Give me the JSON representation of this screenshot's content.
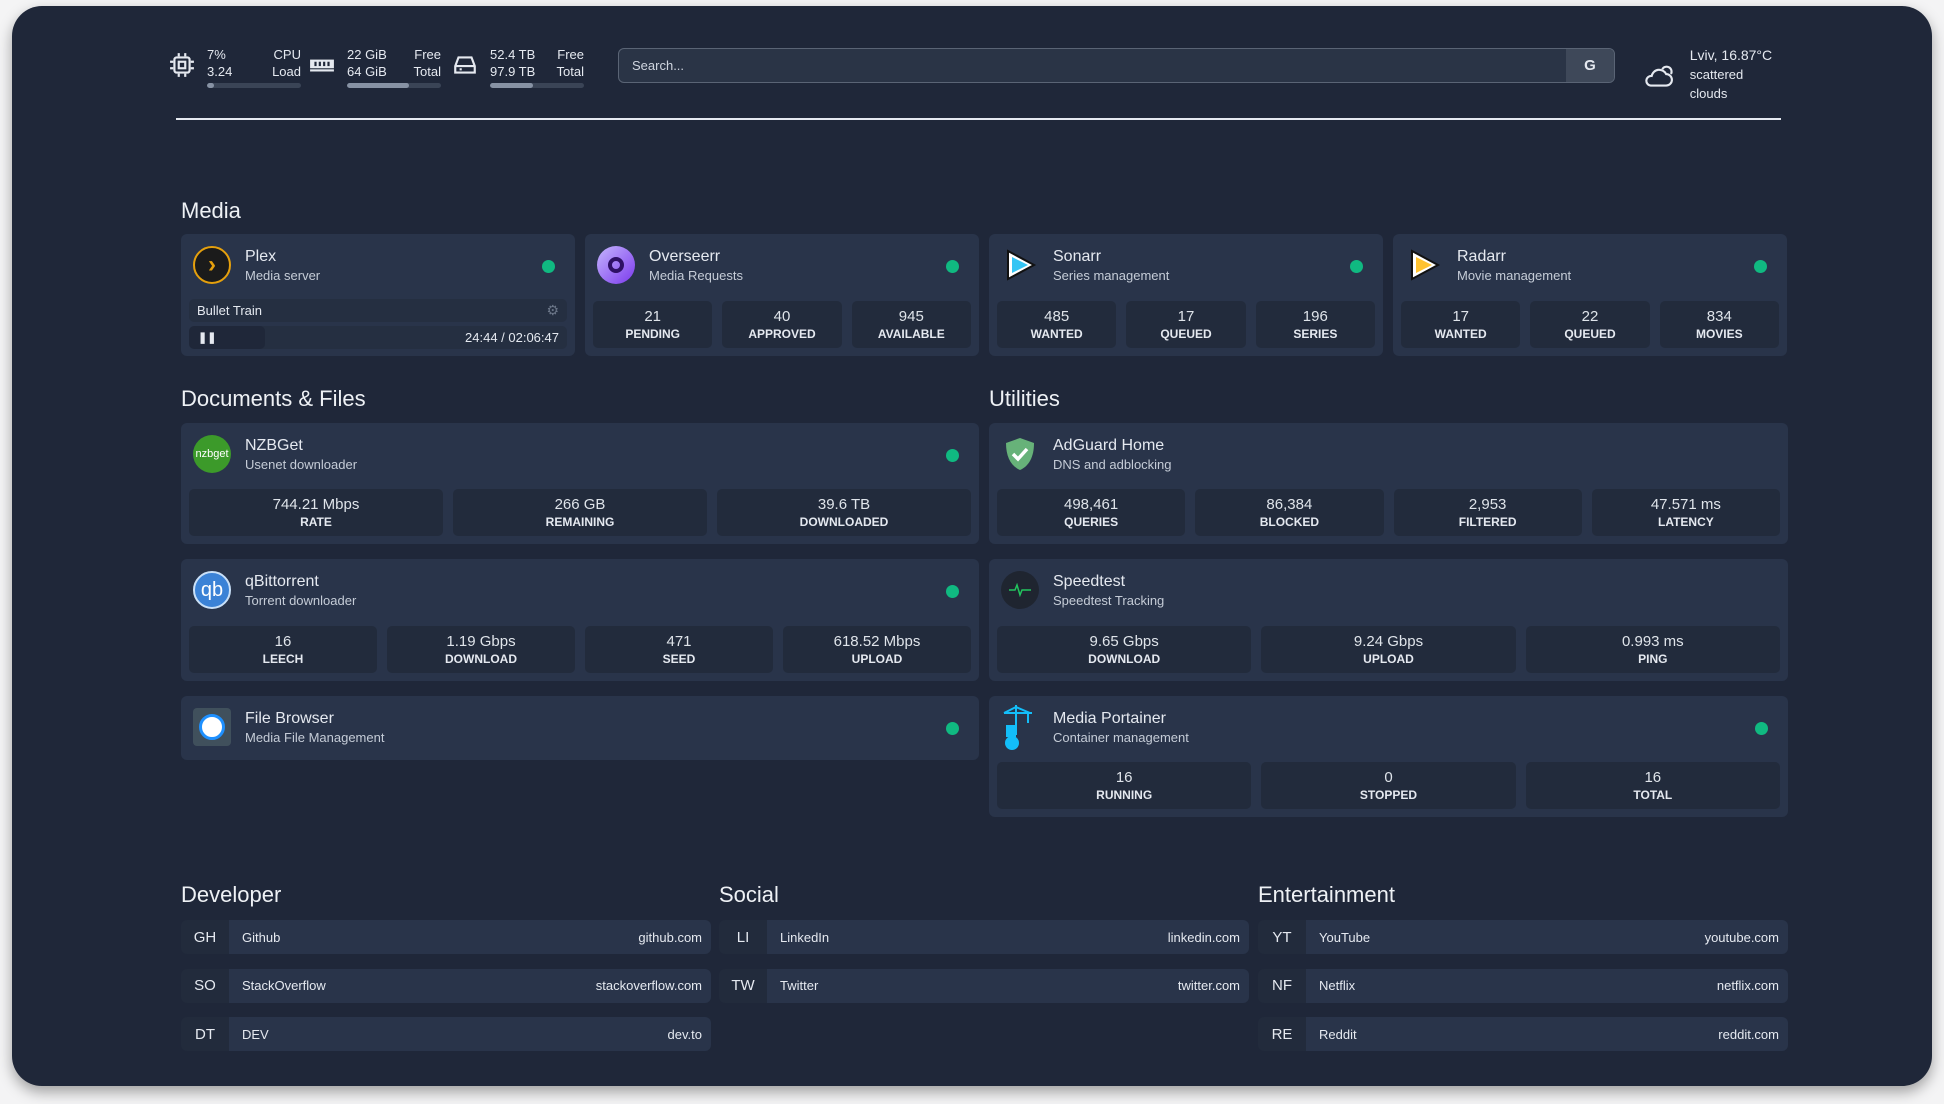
{
  "header": {
    "cpu": {
      "icon": "cpu-icon",
      "value1": "7%",
      "value2": "3.24",
      "label1": "CPU",
      "label2": "Load",
      "fill_percent": 7
    },
    "memory": {
      "icon": "memory-icon",
      "value1": "22 GiB",
      "value2": "64 GiB",
      "label1": "Free",
      "label2": "Total",
      "fill_percent": 66
    },
    "disk": {
      "icon": "disk-icon",
      "value1": "52.4 TB",
      "value2": "97.9 TB",
      "label1": "Free",
      "label2": "Total",
      "fill_percent": 46
    },
    "search": {
      "placeholder": "Search...",
      "engine_label": "G"
    },
    "weather": {
      "icon": "cloud-icon",
      "location_temp": "Lviv, 16.87°C",
      "condition": "scattered clouds"
    }
  },
  "sections": {
    "media": "Media",
    "documents": "Documents & Files",
    "utilities": "Utilities",
    "developer": "Developer",
    "social": "Social",
    "entertainment": "Entertainment"
  },
  "media": [
    {
      "name": "Plex",
      "desc": "Media server",
      "icon": "plex-icon",
      "status": "online",
      "now_playing": {
        "title": "Bullet Train",
        "time": "24:44 / 02:06:47",
        "progress_percent": 20
      }
    },
    {
      "name": "Overseerr",
      "desc": "Media Requests",
      "icon": "overseerr-icon",
      "status": "online",
      "stats": [
        {
          "v": "21",
          "l": "PENDING"
        },
        {
          "v": "40",
          "l": "APPROVED"
        },
        {
          "v": "945",
          "l": "AVAILABLE"
        }
      ]
    },
    {
      "name": "Sonarr",
      "desc": "Series management",
      "icon": "sonarr-icon",
      "status": "online",
      "stats": [
        {
          "v": "485",
          "l": "WANTED"
        },
        {
          "v": "17",
          "l": "QUEUED"
        },
        {
          "v": "196",
          "l": "SERIES"
        }
      ]
    },
    {
      "name": "Radarr",
      "desc": "Movie management",
      "icon": "radarr-icon",
      "status": "online",
      "stats": [
        {
          "v": "17",
          "l": "WANTED"
        },
        {
          "v": "22",
          "l": "QUEUED"
        },
        {
          "v": "834",
          "l": "MOVIES"
        }
      ]
    }
  ],
  "documents": [
    {
      "name": "NZBGet",
      "desc": "Usenet downloader",
      "icon": "nzbget-icon",
      "status": "online",
      "stats": [
        {
          "v": "744.21 Mbps",
          "l": "RATE"
        },
        {
          "v": "266 GB",
          "l": "REMAINING"
        },
        {
          "v": "39.6 TB",
          "l": "DOWNLOADED"
        }
      ]
    },
    {
      "name": "qBittorrent",
      "desc": "Torrent downloader",
      "icon": "qbittorrent-icon",
      "status": "online",
      "stats": [
        {
          "v": "16",
          "l": "LEECH"
        },
        {
          "v": "1.19 Gbps",
          "l": "DOWNLOAD"
        },
        {
          "v": "471",
          "l": "SEED"
        },
        {
          "v": "618.52 Mbps",
          "l": "UPLOAD"
        }
      ]
    },
    {
      "name": "File Browser",
      "desc": "Media File Management",
      "icon": "filebrowser-icon",
      "status": "online",
      "stats": []
    }
  ],
  "utilities": [
    {
      "name": "AdGuard Home",
      "desc": "DNS and adblocking",
      "icon": "adguard-icon",
      "stats": [
        {
          "v": "498,461",
          "l": "QUERIES"
        },
        {
          "v": "86,384",
          "l": "BLOCKED"
        },
        {
          "v": "2,953",
          "l": "FILTERED"
        },
        {
          "v": "47.571 ms",
          "l": "LATENCY"
        }
      ]
    },
    {
      "name": "Speedtest",
      "desc": "Speedtest Tracking",
      "icon": "speedtest-icon",
      "stats": [
        {
          "v": "9.65 Gbps",
          "l": "DOWNLOAD"
        },
        {
          "v": "9.24 Gbps",
          "l": "UPLOAD"
        },
        {
          "v": "0.993 ms",
          "l": "PING"
        }
      ]
    },
    {
      "name": "Media Portainer",
      "desc": "Container management",
      "icon": "portainer-icon",
      "status": "online",
      "stats": [
        {
          "v": "16",
          "l": "RUNNING"
        },
        {
          "v": "0",
          "l": "STOPPED"
        },
        {
          "v": "16",
          "l": "TOTAL"
        }
      ]
    }
  ],
  "bookmarks": {
    "developer": [
      {
        "abbr": "GH",
        "name": "Github",
        "url": "github.com"
      },
      {
        "abbr": "SO",
        "name": "StackOverflow",
        "url": "stackoverflow.com"
      },
      {
        "abbr": "DT",
        "name": "DEV",
        "url": "dev.to"
      }
    ],
    "social": [
      {
        "abbr": "LI",
        "name": "LinkedIn",
        "url": "linkedin.com"
      },
      {
        "abbr": "TW",
        "name": "Twitter",
        "url": "twitter.com"
      }
    ],
    "entertainment": [
      {
        "abbr": "YT",
        "name": "YouTube",
        "url": "youtube.com"
      },
      {
        "abbr": "NF",
        "name": "Netflix",
        "url": "netflix.com"
      },
      {
        "abbr": "RE",
        "name": "Reddit",
        "url": "reddit.com"
      }
    ]
  },
  "colors": {
    "background": "#1f2739",
    "card": "#29344a",
    "stat": "#222b3c",
    "status_online": "#10b981"
  }
}
